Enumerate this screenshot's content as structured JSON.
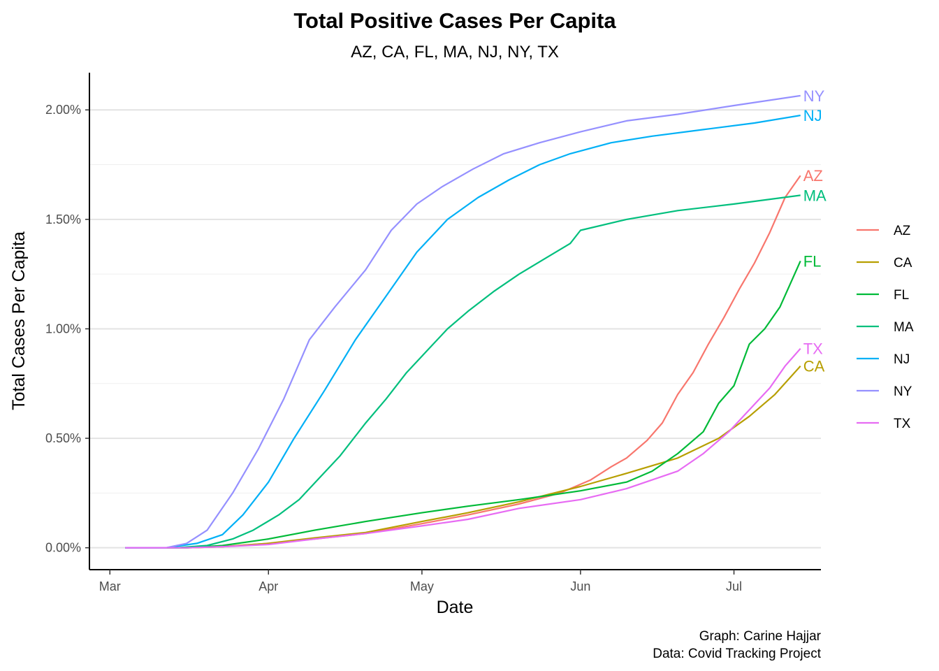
{
  "chart_data": {
    "type": "line",
    "title": "Total Positive Cases Per Capita",
    "subtitle": "AZ, CA, FL, MA, NJ, NY, TX",
    "xlabel": "Date",
    "ylabel": "Total Cases Per Capita",
    "x_ticks": [
      "Mar",
      "Apr",
      "May",
      "Jun",
      "Jul"
    ],
    "y_ticks": [
      "0.00%",
      "0.50%",
      "1.00%",
      "1.50%",
      "2.00%"
    ],
    "ylim": [
      -0.1,
      2.17
    ],
    "xlim": [
      "2020-02-26",
      "2020-07-18"
    ],
    "grid": "horizontal",
    "legend_position": "right",
    "caption": [
      "Graph: Carine Hajjar",
      "Data: Covid Tracking Project"
    ],
    "series": [
      {
        "name": "AZ",
        "color": "#F8766D",
        "points": [
          [
            "2020-03-04",
            0.0
          ],
          [
            "2020-03-16",
            0.0
          ],
          [
            "2020-03-23",
            0.005
          ],
          [
            "2020-04-01",
            0.02
          ],
          [
            "2020-04-10",
            0.04
          ],
          [
            "2020-04-20",
            0.065
          ],
          [
            "2020-05-01",
            0.11
          ],
          [
            "2020-05-10",
            0.15
          ],
          [
            "2020-05-20",
            0.2
          ],
          [
            "2020-05-28",
            0.25
          ],
          [
            "2020-06-03",
            0.31
          ],
          [
            "2020-06-07",
            0.37
          ],
          [
            "2020-06-10",
            0.41
          ],
          [
            "2020-06-14",
            0.49
          ],
          [
            "2020-06-17",
            0.57
          ],
          [
            "2020-06-20",
            0.7
          ],
          [
            "2020-06-23",
            0.8
          ],
          [
            "2020-06-26",
            0.93
          ],
          [
            "2020-06-29",
            1.05
          ],
          [
            "2020-07-02",
            1.18
          ],
          [
            "2020-07-05",
            1.3
          ],
          [
            "2020-07-08",
            1.44
          ],
          [
            "2020-07-11",
            1.6
          ],
          [
            "2020-07-14",
            1.7
          ]
        ]
      },
      {
        "name": "CA",
        "color": "#B79F00",
        "points": [
          [
            "2020-03-04",
            0.0
          ],
          [
            "2020-03-16",
            0.0
          ],
          [
            "2020-03-23",
            0.005
          ],
          [
            "2020-04-01",
            0.02
          ],
          [
            "2020-04-10",
            0.045
          ],
          [
            "2020-04-20",
            0.07
          ],
          [
            "2020-05-01",
            0.12
          ],
          [
            "2020-05-10",
            0.16
          ],
          [
            "2020-05-20",
            0.21
          ],
          [
            "2020-06-01",
            0.28
          ],
          [
            "2020-06-10",
            0.34
          ],
          [
            "2020-06-20",
            0.41
          ],
          [
            "2020-06-28",
            0.5
          ],
          [
            "2020-07-04",
            0.6
          ],
          [
            "2020-07-09",
            0.7
          ],
          [
            "2020-07-14",
            0.83
          ]
        ]
      },
      {
        "name": "FL",
        "color": "#00BA38",
        "points": [
          [
            "2020-03-04",
            0.0
          ],
          [
            "2020-03-16",
            0.0
          ],
          [
            "2020-03-23",
            0.01
          ],
          [
            "2020-04-01",
            0.04
          ],
          [
            "2020-04-10",
            0.08
          ],
          [
            "2020-04-20",
            0.12
          ],
          [
            "2020-05-01",
            0.16
          ],
          [
            "2020-05-10",
            0.19
          ],
          [
            "2020-05-20",
            0.22
          ],
          [
            "2020-06-01",
            0.26
          ],
          [
            "2020-06-10",
            0.3
          ],
          [
            "2020-06-15",
            0.35
          ],
          [
            "2020-06-20",
            0.43
          ],
          [
            "2020-06-25",
            0.53
          ],
          [
            "2020-06-28",
            0.66
          ],
          [
            "2020-07-01",
            0.74
          ],
          [
            "2020-07-04",
            0.93
          ],
          [
            "2020-07-07",
            1.0
          ],
          [
            "2020-07-10",
            1.1
          ],
          [
            "2020-07-14",
            1.31
          ]
        ]
      },
      {
        "name": "MA",
        "color": "#00BF7D",
        "points": [
          [
            "2020-03-04",
            0.0
          ],
          [
            "2020-03-14",
            0.0
          ],
          [
            "2020-03-20",
            0.01
          ],
          [
            "2020-03-25",
            0.04
          ],
          [
            "2020-03-29",
            0.08
          ],
          [
            "2020-04-03",
            0.15
          ],
          [
            "2020-04-07",
            0.22
          ],
          [
            "2020-04-11",
            0.32
          ],
          [
            "2020-04-15",
            0.42
          ],
          [
            "2020-04-20",
            0.57
          ],
          [
            "2020-04-24",
            0.68
          ],
          [
            "2020-04-28",
            0.8
          ],
          [
            "2020-05-02",
            0.9
          ],
          [
            "2020-05-06",
            1.0
          ],
          [
            "2020-05-10",
            1.08
          ],
          [
            "2020-05-15",
            1.17
          ],
          [
            "2020-05-20",
            1.25
          ],
          [
            "2020-05-25",
            1.32
          ],
          [
            "2020-05-30",
            1.39
          ],
          [
            "2020-06-01",
            1.45
          ],
          [
            "2020-06-10",
            1.5
          ],
          [
            "2020-06-20",
            1.54
          ],
          [
            "2020-07-01",
            1.57
          ],
          [
            "2020-07-14",
            1.61
          ]
        ]
      },
      {
        "name": "NJ",
        "color": "#00B0F6",
        "points": [
          [
            "2020-03-04",
            0.0
          ],
          [
            "2020-03-12",
            0.0
          ],
          [
            "2020-03-18",
            0.02
          ],
          [
            "2020-03-23",
            0.06
          ],
          [
            "2020-03-27",
            0.15
          ],
          [
            "2020-04-01",
            0.3
          ],
          [
            "2020-04-06",
            0.5
          ],
          [
            "2020-04-12",
            0.72
          ],
          [
            "2020-04-18",
            0.95
          ],
          [
            "2020-04-24",
            1.15
          ],
          [
            "2020-04-30",
            1.35
          ],
          [
            "2020-05-06",
            1.5
          ],
          [
            "2020-05-12",
            1.6
          ],
          [
            "2020-05-18",
            1.68
          ],
          [
            "2020-05-24",
            1.75
          ],
          [
            "2020-05-30",
            1.8
          ],
          [
            "2020-06-07",
            1.85
          ],
          [
            "2020-06-15",
            1.88
          ],
          [
            "2020-06-25",
            1.91
          ],
          [
            "2020-07-05",
            1.94
          ],
          [
            "2020-07-14",
            1.975
          ]
        ]
      },
      {
        "name": "NY",
        "color": "#9590FF",
        "points": [
          [
            "2020-03-04",
            0.0
          ],
          [
            "2020-03-12",
            0.0
          ],
          [
            "2020-03-16",
            0.02
          ],
          [
            "2020-03-20",
            0.08
          ],
          [
            "2020-03-25",
            0.25
          ],
          [
            "2020-03-30",
            0.45
          ],
          [
            "2020-04-04",
            0.68
          ],
          [
            "2020-04-09",
            0.95
          ],
          [
            "2020-04-14",
            1.1
          ],
          [
            "2020-04-20",
            1.27
          ],
          [
            "2020-04-25",
            1.45
          ],
          [
            "2020-04-30",
            1.57
          ],
          [
            "2020-05-05",
            1.65
          ],
          [
            "2020-05-11",
            1.73
          ],
          [
            "2020-05-17",
            1.8
          ],
          [
            "2020-05-24",
            1.85
          ],
          [
            "2020-06-01",
            1.9
          ],
          [
            "2020-06-10",
            1.95
          ],
          [
            "2020-06-20",
            1.98
          ],
          [
            "2020-07-01",
            2.02
          ],
          [
            "2020-07-14",
            2.065
          ]
        ]
      },
      {
        "name": "TX",
        "color": "#E76BF3",
        "points": [
          [
            "2020-03-04",
            0.0
          ],
          [
            "2020-03-16",
            0.0
          ],
          [
            "2020-03-23",
            0.005
          ],
          [
            "2020-04-01",
            0.015
          ],
          [
            "2020-04-10",
            0.04
          ],
          [
            "2020-04-20",
            0.065
          ],
          [
            "2020-05-01",
            0.1
          ],
          [
            "2020-05-10",
            0.13
          ],
          [
            "2020-05-20",
            0.18
          ],
          [
            "2020-06-01",
            0.22
          ],
          [
            "2020-06-10",
            0.27
          ],
          [
            "2020-06-20",
            0.35
          ],
          [
            "2020-06-25",
            0.43
          ],
          [
            "2020-06-30",
            0.53
          ],
          [
            "2020-07-04",
            0.63
          ],
          [
            "2020-07-08",
            0.73
          ],
          [
            "2020-07-11",
            0.83
          ],
          [
            "2020-07-14",
            0.91
          ]
        ]
      }
    ]
  }
}
